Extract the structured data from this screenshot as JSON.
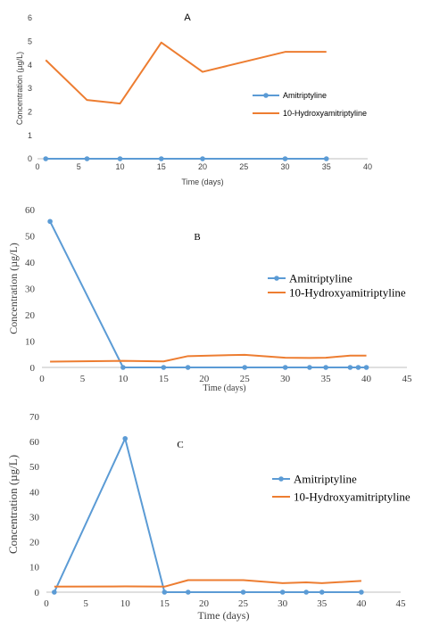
{
  "colors": {
    "amitriptyline": "#5b9bd5",
    "hydroxy": "#ed7d31",
    "axis": "#bfbfbf",
    "text": "#404040"
  },
  "chart_data": [
    {
      "panel": "A",
      "type": "line",
      "xlabel": "Time (days)",
      "ylabel": "Concentration (µg/L)",
      "xlim": [
        0,
        40
      ],
      "ylim": [
        0,
        6
      ],
      "xticks": [
        0,
        5,
        10,
        15,
        20,
        25,
        30,
        35,
        40
      ],
      "yticks": [
        0,
        1,
        2,
        3,
        4,
        5,
        6
      ],
      "grid": false,
      "legend_position": "right",
      "series": [
        {
          "name": "Amitriptyline",
          "x": [
            1,
            6,
            10,
            15,
            20,
            30,
            35
          ],
          "y": [
            0,
            0,
            0,
            0,
            0,
            0,
            0
          ],
          "markers": true
        },
        {
          "name": "10-Hydroxyamitriptyline",
          "x": [
            1,
            6,
            10,
            15,
            20,
            30,
            35
          ],
          "y": [
            4.2,
            2.5,
            2.35,
            4.95,
            3.7,
            4.55,
            4.55
          ],
          "markers": false
        }
      ]
    },
    {
      "panel": "B",
      "type": "line",
      "xlabel": "Time (days)",
      "ylabel": "Concentration (µg/L)",
      "xlim": [
        0,
        45
      ],
      "ylim": [
        0,
        60
      ],
      "xticks": [
        0,
        5,
        10,
        15,
        20,
        25,
        30,
        35,
        40,
        45
      ],
      "yticks": [
        0,
        10,
        20,
        30,
        40,
        50,
        60
      ],
      "grid": false,
      "legend_position": "right",
      "series": [
        {
          "name": "Amitriptyline",
          "x": [
            1,
            10,
            15,
            18,
            25,
            30,
            33,
            35,
            38,
            39,
            40
          ],
          "y": [
            55.5,
            0,
            0,
            0,
            0,
            0,
            0,
            0,
            0,
            0,
            0
          ],
          "markers": true
        },
        {
          "name": "10-Hydroxyamitriptyline",
          "x": [
            1,
            10,
            15,
            18,
            25,
            30,
            33,
            35,
            38,
            39,
            40
          ],
          "y": [
            2.2,
            2.5,
            2.3,
            4.3,
            4.8,
            3.7,
            3.6,
            3.7,
            4.5,
            4.5,
            4.5
          ],
          "markers": false
        }
      ]
    },
    {
      "panel": "C",
      "type": "line",
      "xlabel": "Time (days)",
      "ylabel": "Concentration (µg/L)",
      "xlim": [
        0,
        45
      ],
      "ylim": [
        0,
        70
      ],
      "xticks": [
        0,
        5,
        10,
        15,
        20,
        25,
        30,
        35,
        40,
        45
      ],
      "yticks": [
        0,
        10,
        20,
        30,
        40,
        50,
        60,
        70
      ],
      "grid": false,
      "legend_position": "right",
      "series": [
        {
          "name": "Amitriptyline",
          "x": [
            1,
            10,
            15,
            18,
            25,
            30,
            33,
            35,
            40
          ],
          "y": [
            0,
            61.2,
            0,
            0,
            0,
            0,
            0,
            0,
            0
          ],
          "markers": true
        },
        {
          "name": "10-Hydroxyamitriptyline",
          "x": [
            1,
            10,
            15,
            18,
            25,
            30,
            33,
            35,
            40
          ],
          "y": [
            2.2,
            2.3,
            2.2,
            4.8,
            4.8,
            3.6,
            3.9,
            3.6,
            4.5
          ],
          "markers": false
        }
      ]
    }
  ]
}
